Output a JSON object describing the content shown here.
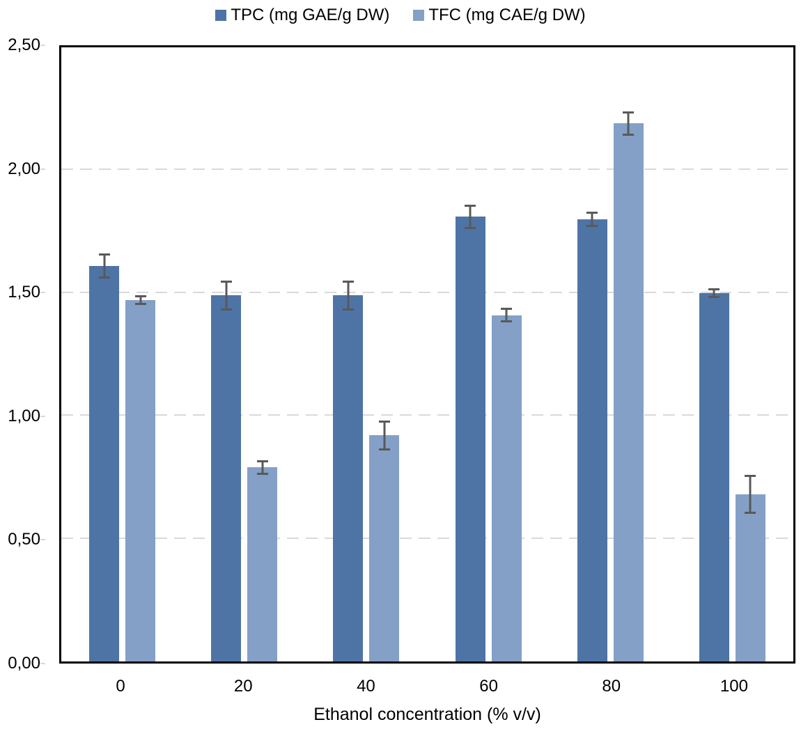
{
  "chart_data": {
    "type": "bar",
    "xlabel": "Ethanol concentration (% v/v)",
    "ylabel": "",
    "categories": [
      "0",
      "20",
      "40",
      "60",
      "80",
      "100"
    ],
    "series": [
      {
        "name": "TPC (mg GAE/g DW)",
        "color": "#4e74a5",
        "values": [
          1.61,
          1.49,
          1.49,
          1.81,
          1.8,
          1.5
        ],
        "errors": [
          0.05,
          0.06,
          0.06,
          0.05,
          0.03,
          0.02
        ]
      },
      {
        "name": "TFC (mg CAE/g DW)",
        "color": "#84a0c6",
        "values": [
          1.47,
          0.79,
          0.92,
          1.41,
          2.19,
          0.68
        ],
        "errors": [
          0.02,
          0.03,
          0.06,
          0.03,
          0.05,
          0.08
        ]
      }
    ],
    "ylim": [
      0,
      2.5
    ],
    "ytick_step": 0.5,
    "ytick_labels": [
      "0,00",
      "0,50",
      "1,00",
      "1,50",
      "2,00",
      "2,50"
    ],
    "decimal_separator": ",",
    "grid": "horizontal-dashed",
    "legend_position": "top",
    "colors": {
      "grid": "#d9d9d9",
      "axis": "#000000",
      "error_bar": "#595959",
      "text": "#000000"
    }
  }
}
